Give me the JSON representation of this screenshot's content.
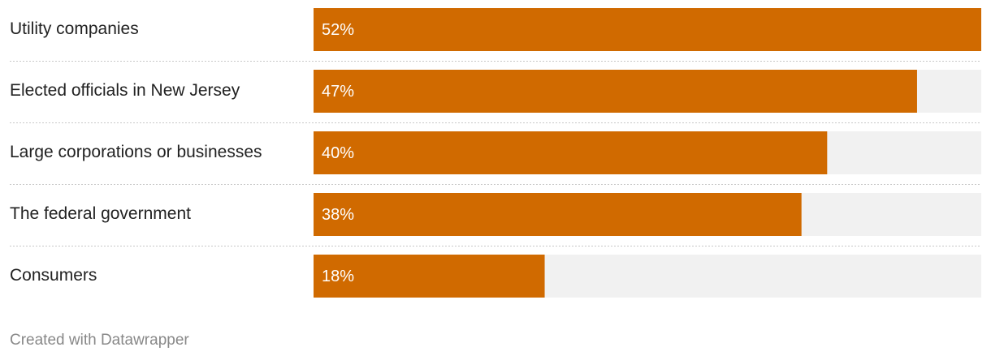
{
  "chart_data": {
    "type": "bar",
    "orientation": "horizontal",
    "categories": [
      "Utility companies",
      "Elected officials in New Jersey",
      "Large corporations or businesses",
      "The federal government",
      "Consumers"
    ],
    "values": [
      52,
      47,
      40,
      38,
      18
    ],
    "value_labels": [
      "52%",
      "47%",
      "40%",
      "38%",
      "18%"
    ],
    "color": "#d06a00",
    "track_color": "#f1f1f1",
    "xlim": [
      0,
      52
    ],
    "footer": "Created with Datawrapper"
  }
}
